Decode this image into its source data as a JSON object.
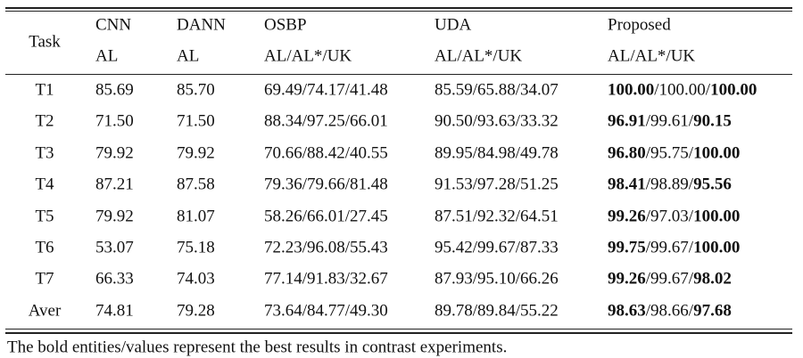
{
  "table": {
    "header": {
      "task": "Task",
      "columns": [
        {
          "name": "CNN",
          "sub": "AL"
        },
        {
          "name": "DANN",
          "sub": "AL"
        },
        {
          "name": "OSBP",
          "sub": "AL/AL*/UK"
        },
        {
          "name": "UDA",
          "sub": "AL/AL*/UK"
        },
        {
          "name": "Proposed",
          "sub": "AL/AL*/UK"
        }
      ]
    },
    "rows": [
      {
        "cells": [
          "T1",
          "85.69",
          "85.70",
          "69.49/74.17/41.48",
          "85.59/65.88/34.07"
        ],
        "proposed": [
          {
            "text": "100.00",
            "bold": true
          },
          {
            "text": "/100.00/",
            "bold": false
          },
          {
            "text": "100.00",
            "bold": true
          }
        ]
      },
      {
        "cells": [
          "T2",
          "71.50",
          "71.50",
          "88.34/97.25/66.01",
          "90.50/93.63/33.32"
        ],
        "proposed": [
          {
            "text": "96.91",
            "bold": true
          },
          {
            "text": "/99.61/",
            "bold": false
          },
          {
            "text": "90.15",
            "bold": true
          }
        ]
      },
      {
        "cells": [
          "T3",
          "79.92",
          "79.92",
          "70.66/88.42/40.55",
          "89.95/84.98/49.78"
        ],
        "proposed": [
          {
            "text": "96.80",
            "bold": true
          },
          {
            "text": "/95.75/",
            "bold": false
          },
          {
            "text": "100.00",
            "bold": true
          }
        ]
      },
      {
        "cells": [
          "T4",
          "87.21",
          "87.58",
          "79.36/79.66/81.48",
          "91.53/97.28/51.25"
        ],
        "proposed": [
          {
            "text": "98.41",
            "bold": true
          },
          {
            "text": "/98.89/",
            "bold": false
          },
          {
            "text": "95.56",
            "bold": true
          }
        ]
      },
      {
        "cells": [
          "T5",
          "79.92",
          "81.07",
          "58.26/66.01/27.45",
          "87.51/92.32/64.51"
        ],
        "proposed": [
          {
            "text": "99.26",
            "bold": true
          },
          {
            "text": "/97.03/",
            "bold": false
          },
          {
            "text": "100.00",
            "bold": true
          }
        ]
      },
      {
        "cells": [
          "T6",
          "53.07",
          "75.18",
          "72.23/96.08/55.43",
          "95.42/99.67/87.33"
        ],
        "proposed": [
          {
            "text": "99.75",
            "bold": true
          },
          {
            "text": "/99.67/",
            "bold": false
          },
          {
            "text": "100.00",
            "bold": true
          }
        ]
      },
      {
        "cells": [
          "T7",
          "66.33",
          "74.03",
          "77.14/91.83/32.67",
          "87.93/95.10/66.26"
        ],
        "proposed": [
          {
            "text": "99.26",
            "bold": true
          },
          {
            "text": "/99.67/",
            "bold": false
          },
          {
            "text": "98.02",
            "bold": true
          }
        ]
      },
      {
        "cells": [
          "Aver",
          "74.81",
          "79.28",
          "73.64/84.77/49.30",
          "89.78/89.84/55.22"
        ],
        "proposed": [
          {
            "text": "98.63",
            "bold": true
          },
          {
            "text": "/98.66/",
            "bold": false
          },
          {
            "text": "97.68",
            "bold": true
          }
        ]
      }
    ],
    "footnote": "The bold entities/values represent the best results in contrast experiments."
  }
}
